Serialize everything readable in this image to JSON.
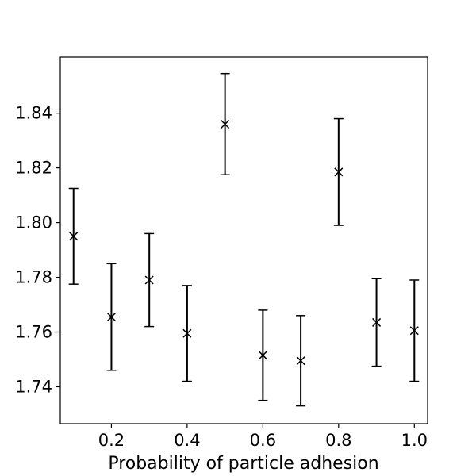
{
  "chart_data": {
    "type": "scatter",
    "xlabel": "Probability of particle adhesion",
    "ylabel": "",
    "xlim": [
      0.065,
      1.035
    ],
    "ylim": [
      1.7265,
      1.8605
    ],
    "xticks": [
      0.2,
      0.4,
      0.6,
      0.8,
      1.0
    ],
    "xtick_labels": [
      "0.2",
      "0.4",
      "0.6",
      "0.8",
      "1.0"
    ],
    "yticks": [
      1.74,
      1.76,
      1.78,
      1.8,
      1.82,
      1.84
    ],
    "ytick_labels": [
      "1.74",
      "1.76",
      "1.78",
      "1.80",
      "1.82",
      "1.84"
    ],
    "marker": "x",
    "color": "#000000",
    "grid": false,
    "points": [
      {
        "x": 0.1,
        "y": 1.795,
        "err": 0.0175
      },
      {
        "x": 0.2,
        "y": 1.7655,
        "err": 0.0195
      },
      {
        "x": 0.3,
        "y": 1.779,
        "err": 0.017
      },
      {
        "x": 0.4,
        "y": 1.7595,
        "err": 0.0175
      },
      {
        "x": 0.5,
        "y": 1.836,
        "err": 0.0185
      },
      {
        "x": 0.6,
        "y": 1.7515,
        "err": 0.0165
      },
      {
        "x": 0.7,
        "y": 1.7495,
        "err": 0.0165
      },
      {
        "x": 0.8,
        "y": 1.8185,
        "err": 0.0195
      },
      {
        "x": 0.9,
        "y": 1.7635,
        "err": 0.016
      },
      {
        "x": 1.0,
        "y": 1.7605,
        "err": 0.0185
      }
    ]
  }
}
